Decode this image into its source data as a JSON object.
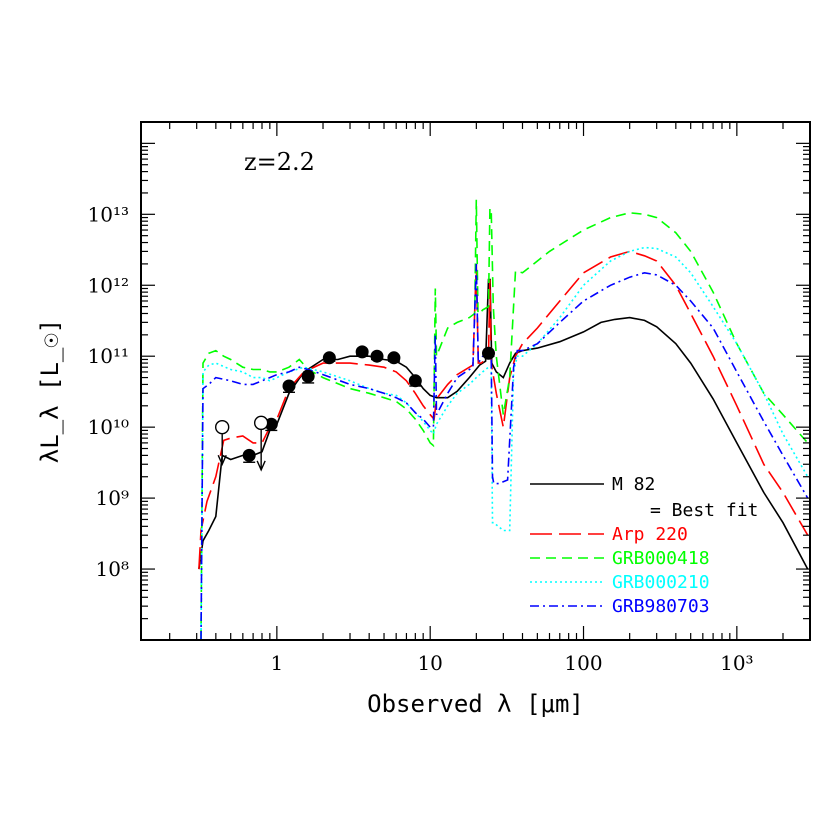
{
  "chart_data": {
    "type": "line",
    "title": "",
    "annotation": "z=2.2",
    "xlabel": "Observed λ [μm]",
    "ylabel": "λL_λ [L_☉]",
    "xscale": "log",
    "yscale": "log",
    "xlim": [
      0.13,
      3000
    ],
    "ylim": [
      10000000.0,
      200000000000000.0
    ],
    "grid": false,
    "legend_position": "bottom-right",
    "x_ticks": [
      {
        "value": 1,
        "label": "1"
      },
      {
        "value": 10,
        "label": "10"
      },
      {
        "value": 100,
        "label": "100"
      },
      {
        "value": 1000,
        "label": "10³"
      }
    ],
    "y_ticks": [
      {
        "value": 100000000.0,
        "label": "10⁸"
      },
      {
        "value": 1000000000.0,
        "label": "10⁹"
      },
      {
        "value": 10000000000.0,
        "label": "10¹⁰"
      },
      {
        "value": 100000000000.0,
        "label": "10¹¹"
      },
      {
        "value": 1000000000000.0,
        "label": "10¹²"
      },
      {
        "value": 10000000000000.0,
        "label": "10¹³"
      }
    ],
    "series": [
      {
        "name": "M 82",
        "name_extra": "= Best fit",
        "color": "#000000",
        "style": "solid",
        "x": [
          0.31,
          0.33,
          0.36,
          0.4,
          0.44,
          0.5,
          0.6,
          0.7,
          0.8,
          0.9,
          1.0,
          1.2,
          1.5,
          2.0,
          2.5,
          3.0,
          4.0,
          5.0,
          6.0,
          7.0,
          8.0,
          9.0,
          10.0,
          11.0,
          13.0,
          15.0,
          18.0,
          21.0,
          23.0,
          24.0,
          24.6,
          25.2,
          27.0,
          30.0,
          33.0,
          36.0,
          40.0,
          50.0,
          70.0,
          100.0,
          130.0,
          160.0,
          200.0,
          250.0,
          300.0,
          400.0,
          500.0,
          700.0,
          1000.0,
          1500.0,
          2000.0,
          2900.0
        ],
        "y": [
          100000000.0,
          250000000.0,
          350000000.0,
          550000000.0,
          4000000000.0,
          3500000000.0,
          4000000000.0,
          4000000000.0,
          4500000000.0,
          9000000000.0,
          11000000000.0,
          30000000000.0,
          60000000000.0,
          90000000000.0,
          90000000000.0,
          100000000000.0,
          100000000000.0,
          90000000000.0,
          85000000000.0,
          70000000000.0,
          50000000000.0,
          35000000000.0,
          28000000000.0,
          26000000000.0,
          26000000000.0,
          32000000000.0,
          50000000000.0,
          75000000000.0,
          85000000000.0,
          1200000000000.0,
          1200000000000.0,
          80000000000.0,
          60000000000.0,
          50000000000.0,
          80000000000.0,
          110000000000.0,
          120000000000.0,
          130000000000.0,
          160000000000.0,
          220000000000.0,
          300000000000.0,
          330000000000.0,
          350000000000.0,
          320000000000.0,
          260000000000.0,
          150000000000.0,
          80000000000.0,
          25000000000.0,
          6000000000.0,
          1200000000.0,
          450000000.0,
          100000000.0
        ]
      },
      {
        "name": "Arp 220",
        "color": "#ff0000",
        "style": "long-dash",
        "x": [
          0.31,
          0.32,
          0.35,
          0.4,
          0.45,
          0.5,
          0.6,
          0.7,
          0.8,
          0.9,
          1.0,
          1.2,
          1.5,
          2.0,
          3.0,
          4.0,
          5.0,
          6.0,
          7.0,
          8.0,
          9.0,
          10.0,
          10.6,
          11.0,
          13.0,
          15.0,
          19.0,
          20.0,
          20.6,
          21.5,
          23.0,
          24.0,
          24.5,
          25.0,
          27.0,
          30.0,
          33.0,
          36.0,
          40.0,
          50.0,
          70.0,
          100.0,
          150.0,
          200.0,
          250.0,
          300.0,
          400.0,
          500.0,
          700.0,
          1000.0,
          1500.0,
          2000.0,
          2900.0
        ],
        "y": [
          100000000.0,
          350000000.0,
          900000000.0,
          2000000000.0,
          6500000000.0,
          7000000000.0,
          7500000000.0,
          6000000000.0,
          6000000000.0,
          10000000000.0,
          13000000000.0,
          35000000000.0,
          60000000000.0,
          80000000000.0,
          80000000000.0,
          75000000000.0,
          70000000000.0,
          60000000000.0,
          45000000000.0,
          30000000000.0,
          20000000000.0,
          15000000000.0,
          13000000000.0,
          25000000000.0,
          40000000000.0,
          55000000000.0,
          75000000000.0,
          2000000000000.0,
          80000000000.0,
          80000000000.0,
          90000000000.0,
          100000000000.0,
          1200000000000.0,
          80000000000.0,
          30000000000.0,
          10000000000.0,
          50000000000.0,
          100000000000.0,
          150000000000.0,
          250000000000.0,
          600000000000.0,
          1500000000000.0,
          2500000000000.0,
          3000000000000.0,
          2600000000000.0,
          2200000000000.0,
          1000000000000.0,
          400000000000.0,
          100000000000.0,
          20000000000.0,
          3000000000.0,
          1200000000.0,
          300000000.0
        ]
      },
      {
        "name": "GRB000418",
        "color": "#00ff00",
        "style": "dash",
        "x": [
          0.32,
          0.33,
          0.36,
          0.4,
          0.45,
          0.5,
          0.6,
          0.7,
          0.8,
          0.9,
          1.0,
          1.2,
          1.4,
          1.6,
          2.0,
          3.0,
          4.0,
          5.0,
          6.0,
          7.0,
          8.0,
          9.0,
          10.0,
          10.5,
          10.8,
          11.0,
          13.0,
          15.0,
          18.0,
          19.5,
          20.0,
          20.5,
          21.0,
          22.0,
          24.0,
          24.5,
          25.0,
          25.8,
          27.0,
          30.0,
          33.0,
          36.0,
          40.0,
          60.0,
          100.0,
          150.0,
          200.0,
          250.0,
          300.0,
          400.0,
          500.0,
          700.0,
          1000.0,
          1500.0,
          2000.0,
          2900.0
        ],
        "y": [
          10000000.0,
          80000000000.0,
          110000000000.0,
          120000000000.0,
          100000000000.0,
          90000000000.0,
          70000000000.0,
          65000000000.0,
          65000000000.0,
          60000000000.0,
          60000000000.0,
          70000000000.0,
          90000000000.0,
          65000000000.0,
          50000000000.0,
          35000000000.0,
          30000000000.0,
          26000000000.0,
          23000000000.0,
          18000000000.0,
          13000000000.0,
          9000000000.0,
          6000000000.0,
          5500000000.0,
          900000000000.0,
          100000000000.0,
          250000000000.0,
          300000000000.0,
          350000000000.0,
          400000000000.0,
          16000000000000.0,
          400000000000.0,
          400000000000.0,
          450000000000.0,
          500000000000.0,
          12000000000000.0,
          12000000000000.0,
          500000000000.0,
          100000000000.0,
          15000000000.0,
          50000000000.0,
          1600000000000.0,
          1500000000000.0,
          3000000000000.0,
          6000000000000.0,
          9000000000000.0,
          10500000000000.0,
          10000000000000.0,
          9000000000000.0,
          5500000000000.0,
          3000000000000.0,
          800000000000.0,
          150000000000.0,
          30000000000.0,
          15000000000.0,
          6000000000.0
        ]
      },
      {
        "name": "GRB000210",
        "color": "#00ffff",
        "style": "dot",
        "x": [
          0.32,
          0.33,
          0.36,
          0.4,
          0.5,
          0.6,
          0.7,
          0.8,
          0.9,
          1.0,
          1.2,
          1.5,
          2.0,
          3.0,
          4.0,
          5.0,
          6.0,
          7.0,
          8.0,
          9.0,
          10.0,
          10.5,
          11.0,
          13.0,
          15.0,
          18.0,
          20.0,
          22.0,
          24.0,
          25.0,
          25.5,
          26.0,
          30.0,
          33.0,
          35.0,
          37.0,
          40.0,
          50.0,
          70.0,
          100.0,
          150.0,
          200.0,
          250.0,
          300.0,
          400.0,
          500.0,
          700.0,
          1000.0,
          1500.0,
          2000.0,
          2900.0
        ],
        "y": [
          10000000.0,
          60000000000.0,
          75000000000.0,
          80000000000.0,
          65000000000.0,
          60000000000.0,
          50000000000.0,
          50000000000.0,
          45000000000.0,
          50000000000.0,
          60000000000.0,
          70000000000.0,
          60000000000.0,
          45000000000.0,
          35000000000.0,
          30000000000.0,
          28000000000.0,
          22000000000.0,
          16000000000.0,
          12000000000.0,
          9000000000.0,
          8000000000.0,
          11000000000.0,
          20000000000.0,
          30000000000.0,
          40000000000.0,
          50000000000.0,
          60000000000.0,
          70000000000.0,
          70000000000.0,
          450000000.0,
          450000000.0,
          350000000.0,
          350000000.0,
          60000000000.0,
          100000000000.0,
          100000000000.0,
          150000000000.0,
          350000000000.0,
          1000000000000.0,
          2200000000000.0,
          3000000000000.0,
          3400000000000.0,
          3300000000000.0,
          2500000000000.0,
          1500000000000.0,
          500000000000.0,
          150000000000.0,
          30000000000.0,
          8000000000.0,
          2000000000.0
        ]
      },
      {
        "name": "GRB980703",
        "color": "#0000ff",
        "style": "dash-dot",
        "x": [
          0.32,
          0.33,
          0.36,
          0.4,
          0.5,
          0.6,
          0.7,
          0.8,
          0.9,
          1.0,
          1.2,
          1.4,
          1.6,
          2.0,
          3.0,
          4.0,
          5.0,
          6.0,
          7.0,
          8.0,
          9.0,
          10.0,
          10.5,
          10.8,
          11.0,
          13.0,
          15.0,
          19.0,
          20.0,
          20.6,
          22.0,
          24.0,
          25.0,
          25.5,
          26.0,
          28.0,
          32.0,
          35.0,
          37.0,
          40.0,
          50.0,
          70.0,
          100.0,
          150.0,
          200.0,
          250.0,
          300.0,
          400.0,
          500.0,
          700.0,
          1000.0,
          1500.0,
          2000.0,
          2900.0
        ],
        "y": [
          10000000.0,
          35000000000.0,
          40000000000.0,
          50000000000.0,
          45000000000.0,
          40000000000.0,
          40000000000.0,
          45000000000.0,
          50000000000.0,
          55000000000.0,
          60000000000.0,
          70000000000.0,
          65000000000.0,
          55000000000.0,
          40000000000.0,
          35000000000.0,
          30000000000.0,
          26000000000.0,
          22000000000.0,
          16000000000.0,
          13000000000.0,
          10000000000.0,
          10000000000.0,
          200000000000.0,
          15000000000.0,
          30000000000.0,
          50000000000.0,
          70000000000.0,
          2000000000000.0,
          80000000000.0,
          100000000000.0,
          120000000000.0,
          110000000000.0,
          2000000000.0,
          1600000000.0,
          1600000000.0,
          1800000000.0,
          70000000000.0,
          120000000000.0,
          120000000000.0,
          150000000000.0,
          300000000000.0,
          600000000000.0,
          1000000000000.0,
          1300000000000.0,
          1500000000000.0,
          1400000000000.0,
          1000000000000.0,
          600000000000.0,
          250000000000.0,
          60000000000.0,
          12000000000.0,
          4000000000.0,
          1000000000.0
        ]
      }
    ],
    "detections": [
      {
        "x": 0.66,
        "y": 4000000000.0,
        "err_low": 3200000000.0,
        "err_high": 4600000000.0
      },
      {
        "x": 0.92,
        "y": 11000000000.0,
        "err_low": 9000000000.0,
        "err_high": 13000000000.0
      },
      {
        "x": 1.2,
        "y": 38000000000.0,
        "err_low": 31000000000.0,
        "err_high": 45000000000.0
      },
      {
        "x": 1.6,
        "y": 52000000000.0,
        "err_low": 42000000000.0,
        "err_high": 62000000000.0
      },
      {
        "x": 2.2,
        "y": 95000000000.0,
        "err_low": 85000000000.0,
        "err_high": 105000000000.0
      },
      {
        "x": 3.6,
        "y": 115000000000.0,
        "err_low": 105000000000.0,
        "err_high": 125000000000.0
      },
      {
        "x": 4.5,
        "y": 100000000000.0,
        "err_low": 90000000000.0,
        "err_high": 110000000000.0
      },
      {
        "x": 5.8,
        "y": 95000000000.0,
        "err_low": 85000000000.0,
        "err_high": 105000000000.0
      },
      {
        "x": 8.0,
        "y": 45000000000.0,
        "err_low": 38000000000.0,
        "err_high": 52000000000.0
      },
      {
        "x": 24.0,
        "y": 110000000000.0,
        "err_low": 100000000000.0,
        "err_high": 120000000000.0
      }
    ],
    "upper_limits": [
      {
        "x": 0.44,
        "y": 10000000000.0,
        "arrow_to": 3000000000.0
      },
      {
        "x": 0.79,
        "y": 11500000000.0,
        "arrow_to": 2500000000.0
      }
    ]
  }
}
